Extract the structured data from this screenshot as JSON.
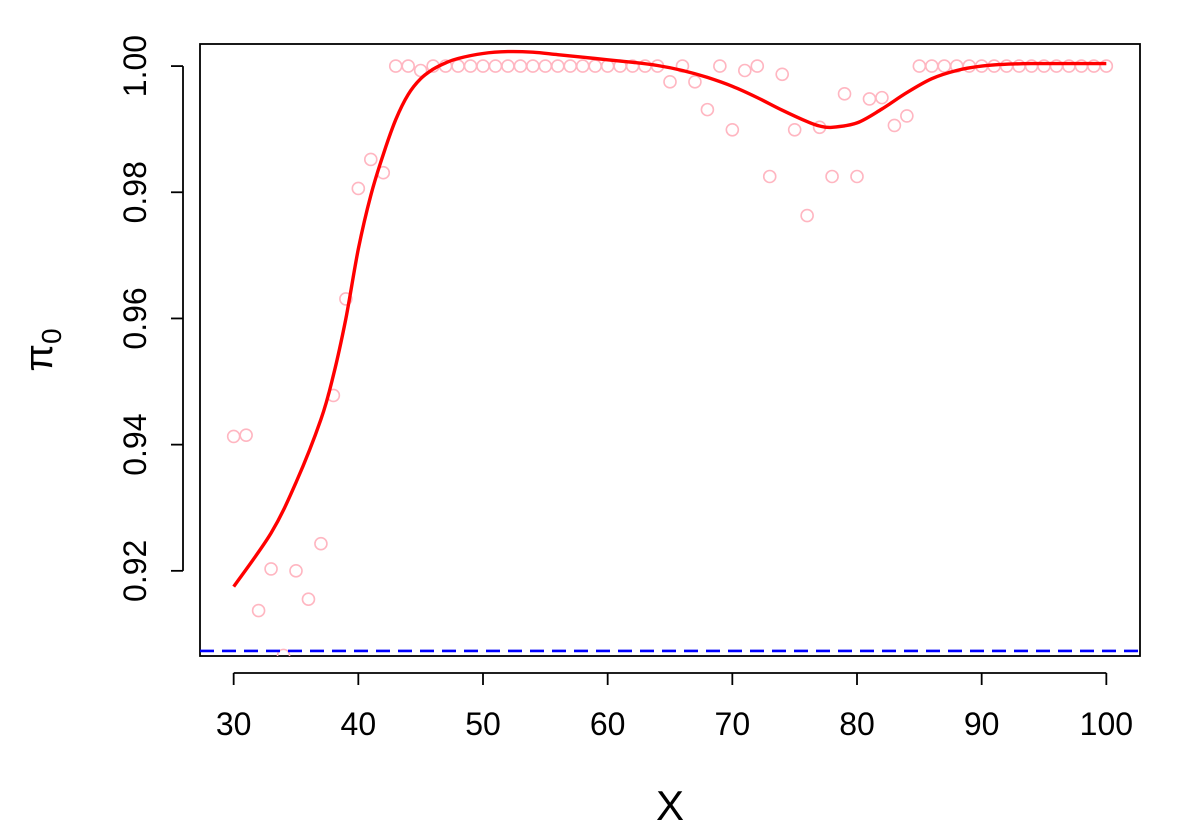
{
  "chart_data": {
    "type": "scatter",
    "xlabel": "X",
    "ylabel": "π",
    "ylabel_sub": "0",
    "xlim": [
      27.3,
      102.7
    ],
    "ylim": [
      0.9065,
      1.0035
    ],
    "x_ticks": [
      30,
      40,
      50,
      60,
      70,
      80,
      90,
      100
    ],
    "y_ticks": [
      0.92,
      0.94,
      0.96,
      0.98,
      1.0
    ],
    "x_tick_labels": [
      "30",
      "40",
      "50",
      "60",
      "70",
      "80",
      "90",
      "100"
    ],
    "y_tick_labels": [
      "0.92",
      "0.94",
      "0.96",
      "0.98",
      "1.00"
    ],
    "grid": false,
    "series": [
      {
        "kind": "points",
        "marker": "open-circle",
        "color": "#ffb6c1",
        "x": [
          30,
          31,
          32,
          33,
          34,
          35,
          36,
          37,
          38,
          39,
          40,
          41,
          42,
          43,
          44,
          45,
          46,
          47,
          48,
          49,
          50,
          51,
          52,
          53,
          54,
          55,
          56,
          57,
          58,
          59,
          60,
          61,
          62,
          63,
          64,
          65,
          66,
          67,
          68,
          69,
          70,
          71,
          72,
          73,
          74,
          75,
          76,
          77,
          78,
          79,
          80,
          81,
          82,
          83,
          84,
          85,
          86,
          87,
          88,
          89,
          90,
          91,
          92,
          93,
          94,
          95,
          96,
          97,
          98,
          99,
          100
        ],
        "y": [
          0.9413,
          0.9415,
          0.9137,
          0.9203,
          0.9066,
          0.92,
          0.9155,
          0.9243,
          0.9478,
          0.9631,
          0.9806,
          0.9852,
          0.9831,
          1.0,
          1.0,
          0.9993,
          1.0,
          1.0,
          1.0,
          1.0,
          1.0,
          1.0,
          1.0,
          1.0,
          1.0,
          1.0,
          1.0,
          1.0,
          1.0,
          1.0,
          1.0,
          1.0,
          1.0,
          1.0,
          1.0,
          0.9975,
          1.0,
          0.9975,
          0.9931,
          1.0,
          0.9899,
          0.9993,
          1.0,
          0.9825,
          0.9987,
          0.9899,
          0.9763,
          0.9903,
          0.9825,
          0.9956,
          0.9825,
          0.9948,
          0.995,
          0.9906,
          0.9921,
          1.0,
          1.0,
          1.0,
          1.0,
          1.0,
          1.0,
          1.0,
          1.0,
          1.0,
          1.0,
          1.0,
          1.0,
          1.0,
          1.0,
          1.0,
          1.0
        ]
      },
      {
        "kind": "line",
        "style": "solid",
        "color": "#ff0000",
        "x": [
          30,
          33,
          35,
          37,
          38,
          39,
          40,
          41,
          42,
          43,
          44,
          45,
          46,
          47,
          48,
          50,
          52,
          54,
          56,
          58,
          60,
          62,
          64,
          66,
          68,
          70,
          72,
          74,
          76,
          77,
          78,
          80,
          82,
          84,
          86,
          88,
          90,
          92,
          94,
          96,
          98,
          100
        ],
        "y": [
          0.9175,
          0.926,
          0.934,
          0.944,
          0.951,
          0.96,
          0.971,
          0.9795,
          0.986,
          0.9915,
          0.9955,
          0.998,
          0.9995,
          1.0005,
          1.0012,
          1.002,
          1.0023,
          1.0022,
          1.0018,
          1.0014,
          1.001,
          1.0006,
          1.0001,
          0.9993,
          0.9982,
          0.9968,
          0.995,
          0.993,
          0.9912,
          0.9905,
          0.9903,
          0.991,
          0.9932,
          0.9958,
          0.998,
          0.9993,
          1.0,
          1.0003,
          1.0004,
          1.0004,
          1.0004,
          1.0004
        ]
      },
      {
        "kind": "hline",
        "style": "dashed",
        "color": "#0000ff",
        "y": 0.9073
      }
    ]
  }
}
